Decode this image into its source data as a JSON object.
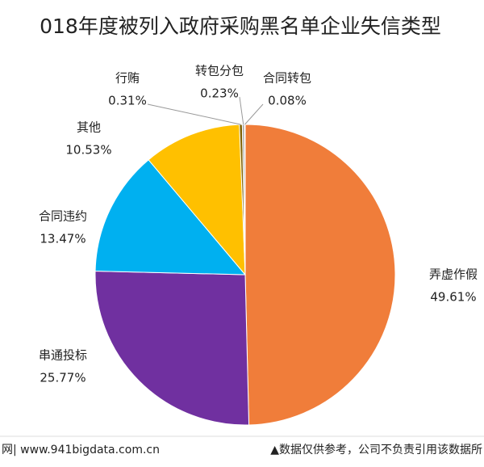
{
  "chart_data": {
    "type": "pie",
    "title": "018年度被列入政府采购黑名单企业失信类型",
    "categories": [
      "弄虚作假",
      "串通投标",
      "合同违约",
      "其他",
      "行贿",
      "转包分包",
      "合同转包"
    ],
    "values": [
      49.61,
      25.77,
      13.47,
      10.53,
      0.31,
      0.23,
      0.08
    ],
    "value_labels": [
      "49.61%",
      "25.77%",
      "13.47%",
      "10.53%",
      "0.31%",
      "0.23%",
      "0.08%"
    ],
    "colors": [
      "#f07d3a",
      "#7030a0",
      "#00b0f0",
      "#ffc000",
      "#7f6000",
      "#a5a5a5",
      "#5b7fbf"
    ],
    "footer_left": "网| www.941bigdata.com.cn",
    "footer_right": "▲数据仅供参考，公司不负责引用该数据所"
  }
}
